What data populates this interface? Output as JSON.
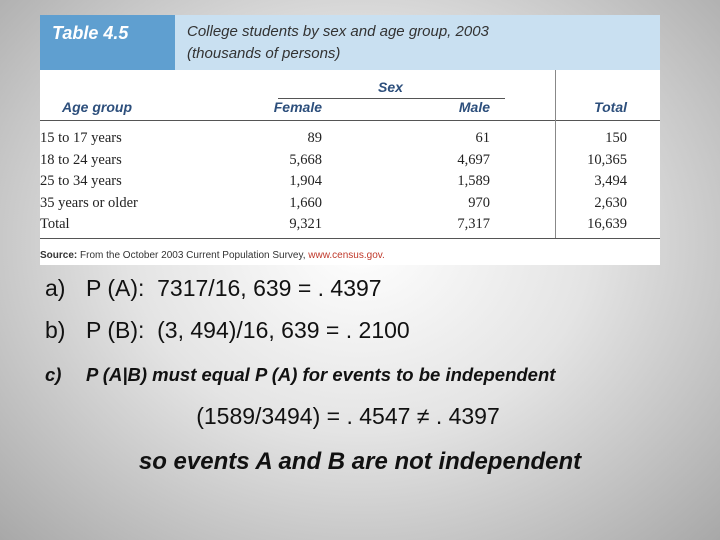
{
  "table": {
    "label": "Table 4.5",
    "title": "College students by sex and age group, 2003",
    "subtitle": "(thousands of persons)",
    "group_header": "Sex",
    "columns": [
      "Age group",
      "Female",
      "Male",
      "Total"
    ],
    "rows": [
      [
        "15 to 17 years",
        "89",
        "61",
        "150"
      ],
      [
        "18 to 24 years",
        "5,668",
        "4,697",
        "10,365"
      ],
      [
        "25 to 34 years",
        "1,904",
        "1,589",
        "3,494"
      ],
      [
        "35 years or older",
        "1,660",
        "970",
        "2,630"
      ],
      [
        "Total",
        "9,321",
        "7,317",
        "16,639"
      ]
    ],
    "source_label": "Source:",
    "source_text": "From the October 2003 Current Population Survey,",
    "source_url": "www.census.gov."
  },
  "items": [
    {
      "marker": "a)",
      "text": "P (A):  7317/16, 639 = . 4397"
    },
    {
      "marker": "b)",
      "text": "P (B):  (3, 494)/16, 639 = . 2100"
    },
    {
      "marker": "c)",
      "text": "P (A|B) must equal P (A) for events to be independent"
    }
  ],
  "conclusion": [
    "(1589/3494) = . 4547 ≠ . 4397",
    "so events A and B are not independent"
  ]
}
